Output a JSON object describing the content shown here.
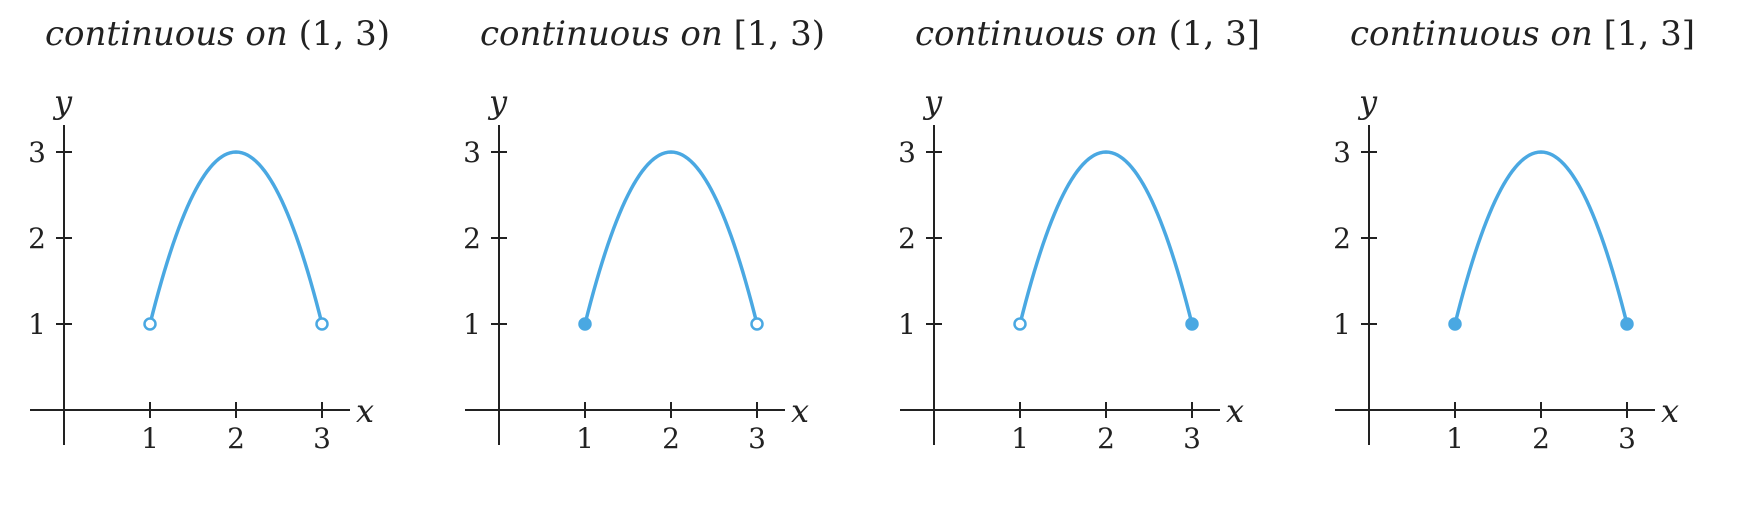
{
  "chart_data": [
    {
      "type": "line",
      "title": "continuous on (1, 3)",
      "title_word": "continuous on",
      "title_interval": "(1, 3)",
      "xlabel": "x",
      "ylabel": "y",
      "x_ticks": [
        "1",
        "2",
        "3"
      ],
      "y_ticks": [
        "1",
        "2",
        "3"
      ],
      "xlim": [
        0,
        3.3
      ],
      "ylim": [
        0,
        3.3
      ],
      "curve": {
        "x": [
          1,
          2,
          3
        ],
        "y": [
          1,
          3,
          1
        ]
      },
      "endpoints": [
        {
          "x": 1,
          "y": 1,
          "filled": false
        },
        {
          "x": 3,
          "y": 1,
          "filled": false
        }
      ],
      "color": "#4aa8e2"
    },
    {
      "type": "line",
      "title": "continuous on [1, 3)",
      "title_word": "continuous on",
      "title_interval": "[1, 3)",
      "xlabel": "x",
      "ylabel": "y",
      "x_ticks": [
        "1",
        "2",
        "3"
      ],
      "y_ticks": [
        "1",
        "2",
        "3"
      ],
      "xlim": [
        0,
        3.3
      ],
      "ylim": [
        0,
        3.3
      ],
      "curve": {
        "x": [
          1,
          2,
          3
        ],
        "y": [
          1,
          3,
          1
        ]
      },
      "endpoints": [
        {
          "x": 1,
          "y": 1,
          "filled": true
        },
        {
          "x": 3,
          "y": 1,
          "filled": false
        }
      ],
      "color": "#4aa8e2"
    },
    {
      "type": "line",
      "title": "continuous on (1, 3]",
      "title_word": "continuous on",
      "title_interval": "(1, 3]",
      "xlabel": "x",
      "ylabel": "y",
      "x_ticks": [
        "1",
        "2",
        "3"
      ],
      "y_ticks": [
        "1",
        "2",
        "3"
      ],
      "xlim": [
        0,
        3.3
      ],
      "ylim": [
        0,
        3.3
      ],
      "curve": {
        "x": [
          1,
          2,
          3
        ],
        "y": [
          1,
          3,
          1
        ]
      },
      "endpoints": [
        {
          "x": 1,
          "y": 1,
          "filled": false
        },
        {
          "x": 3,
          "y": 1,
          "filled": true
        }
      ],
      "color": "#4aa8e2"
    },
    {
      "type": "line",
      "title": "continuous on [1, 3]",
      "title_word": "continuous on",
      "title_interval": "[1, 3]",
      "xlabel": "x",
      "ylabel": "y",
      "x_ticks": [
        "1",
        "2",
        "3"
      ],
      "y_ticks": [
        "1",
        "2",
        "3"
      ],
      "xlim": [
        0,
        3.3
      ],
      "ylim": [
        0,
        3.3
      ],
      "curve": {
        "x": [
          1,
          2,
          3
        ],
        "y": [
          1,
          3,
          1
        ]
      },
      "endpoints": [
        {
          "x": 1,
          "y": 1,
          "filled": true
        },
        {
          "x": 3,
          "y": 1,
          "filled": true
        }
      ],
      "color": "#4aa8e2"
    }
  ]
}
